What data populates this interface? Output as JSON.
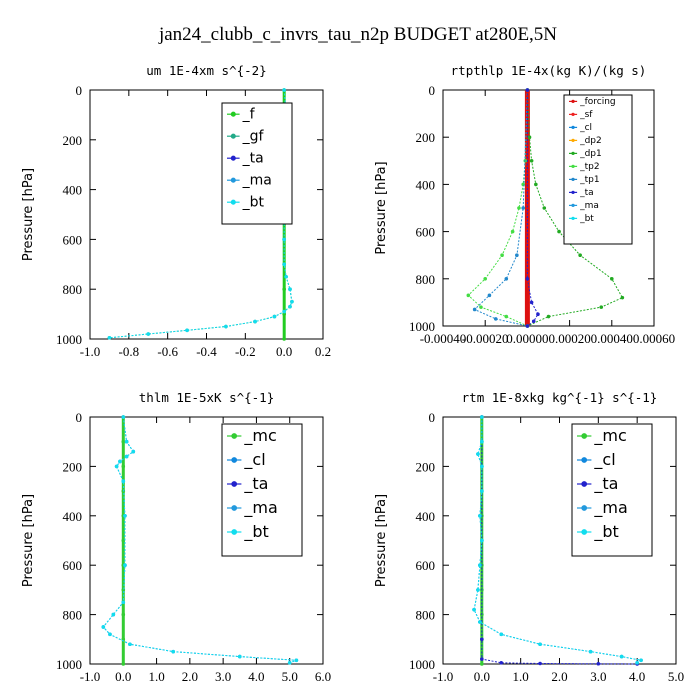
{
  "figure_title": "jan24_clubb_c_invrs_tau_n2p  BUDGET at280E,5N",
  "colors": {
    "f": "#22cc22",
    "gf": "#22aa88",
    "ta": "#2222cc",
    "ma": "#2299dd",
    "bt": "#11ddee",
    "cl": "#1188dd",
    "mc": "#33cc33",
    "forcing": "#dd1111",
    "sf": "#ee2222",
    "dp2": "#ffaa00",
    "dp1": "#22aa22",
    "tp2": "#44dd44",
    "tp1": "#2288cc"
  },
  "chart_data": [
    {
      "type": "line",
      "title": "um   1E-4xm s^{-2}",
      "ylabel": "Pressure [hPa]",
      "xlim": [
        -1.0,
        0.2
      ],
      "ylim": [
        1000,
        0
      ],
      "xticks": [
        "-1.0",
        "-0.8",
        "-0.6",
        "-0.4",
        "-0.2",
        "0.0",
        "0.2"
      ],
      "yticks": [
        "0",
        "200",
        "400",
        "600",
        "800",
        "1000"
      ],
      "legend": [
        "_f",
        "_gf",
        "_ta",
        "_ma",
        "_bt"
      ],
      "series": [
        {
          "name": "_f",
          "x": [
            0,
            0,
            0,
            0,
            0,
            0,
            0,
            0,
            0,
            0,
            0
          ],
          "y": [
            0,
            100,
            200,
            300,
            400,
            500,
            600,
            700,
            800,
            900,
            1000
          ]
        },
        {
          "name": "_gf",
          "x": [
            0.0,
            0.01,
            0.03,
            0.02,
            -0.01,
            0.0,
            0.0,
            0.0,
            0.0,
            0.0,
            0.01,
            0.03,
            0.04,
            0.03,
            0.0,
            -0.05,
            -0.15,
            -0.3,
            -0.5,
            -0.7,
            -0.9
          ],
          "y": [
            0,
            100,
            150,
            180,
            220,
            300,
            400,
            500,
            600,
            700,
            750,
            800,
            850,
            870,
            890,
            910,
            930,
            950,
            965,
            980,
            995
          ]
        },
        {
          "name": "_bt",
          "x": [
            0.0,
            0.01,
            0.03,
            0.02,
            -0.01,
            0.0,
            0.0,
            0.0,
            0.0,
            0.0,
            0.01,
            0.03,
            0.04,
            0.03,
            0.0,
            -0.05,
            -0.15,
            -0.3,
            -0.5,
            -0.7,
            -0.9
          ],
          "y": [
            0,
            100,
            150,
            180,
            220,
            300,
            400,
            500,
            600,
            700,
            750,
            800,
            850,
            870,
            890,
            910,
            930,
            950,
            965,
            980,
            995
          ]
        }
      ]
    },
    {
      "type": "line",
      "title": "rtpthlp   1E-4x(kg K)/(kg s)",
      "ylabel": "Pressure [hPa]",
      "xlim": [
        -0.0004,
        0.0006
      ],
      "ylim": [
        1000,
        0
      ],
      "xticks": [
        "-0.00040",
        "-0.00020",
        "0.00000",
        "0.00020",
        "0.00040",
        "0.00060"
      ],
      "yticks": [
        "0",
        "200",
        "400",
        "600",
        "800",
        "1000"
      ],
      "legend": [
        "_forcing",
        "_sf",
        "_cl",
        "_dp2",
        "_dp1",
        "_tp2",
        "_tp1",
        "_ta",
        "_ma",
        "_bt"
      ],
      "series": [
        {
          "name": "_forcing",
          "x": [
            0,
            0,
            0,
            0,
            0,
            0,
            0,
            0,
            0,
            0,
            0
          ],
          "y": [
            0,
            100,
            200,
            300,
            400,
            500,
            600,
            700,
            800,
            900,
            1000
          ]
        },
        {
          "name": "_dp1",
          "x": [
            0,
            1e-05,
            2e-05,
            4e-05,
            8e-05,
            0.00015,
            0.00025,
            0.0004,
            0.00045,
            0.00035,
            0.0001,
            0
          ],
          "y": [
            0,
            200,
            300,
            400,
            500,
            600,
            700,
            800,
            880,
            920,
            960,
            1000
          ]
        },
        {
          "name": "_tp2",
          "x": [
            0,
            -1e-05,
            -2e-05,
            -4e-05,
            -7e-05,
            -0.00012,
            -0.0002,
            -0.00028,
            -0.00022,
            -0.0001,
            0
          ],
          "y": [
            0,
            300,
            400,
            500,
            600,
            700,
            800,
            870,
            920,
            960,
            1000
          ]
        },
        {
          "name": "_tp1",
          "x": [
            0,
            -2e-05,
            -5e-05,
            -0.0001,
            -0.00018,
            -0.00025,
            -0.00015,
            0
          ],
          "y": [
            0,
            500,
            700,
            800,
            870,
            930,
            970,
            1000
          ]
        },
        {
          "name": "_ta",
          "x": [
            0,
            0,
            2e-05,
            5e-05,
            3e-05,
            0
          ],
          "y": [
            0,
            800,
            900,
            950,
            980,
            1000
          ]
        }
      ]
    },
    {
      "type": "line",
      "title": "thlm   1E-5xK s^{-1}",
      "ylabel": "Pressure [hPa]",
      "xlim": [
        -1.0,
        6.0
      ],
      "ylim": [
        1000,
        0
      ],
      "xticks": [
        "-1.0",
        "0.0",
        "1.0",
        "2.0",
        "3.0",
        "4.0",
        "5.0",
        "6.0"
      ],
      "yticks": [
        "0",
        "200",
        "400",
        "600",
        "800",
        "1000"
      ],
      "legend": [
        "_mc",
        "_cl",
        "_ta",
        "_ma",
        "_bt"
      ],
      "series": [
        {
          "name": "_mc",
          "x": [
            0,
            0,
            0,
            0,
            0,
            0,
            0,
            0,
            0,
            0,
            0
          ],
          "y": [
            0,
            100,
            200,
            300,
            400,
            500,
            600,
            700,
            800,
            900,
            1000
          ]
        },
        {
          "name": "_cl",
          "x": [
            0.0,
            0.1,
            0.3,
            0.1,
            -0.1,
            -0.2,
            0.0,
            0.05,
            0.05,
            0.0,
            -0.3,
            -0.6,
            -0.4,
            0.2,
            1.5,
            3.5,
            5.2,
            5.0
          ],
          "y": [
            0,
            100,
            140,
            160,
            180,
            200,
            260,
            400,
            600,
            750,
            800,
            850,
            880,
            920,
            950,
            970,
            985,
            995
          ]
        },
        {
          "name": "_bt",
          "x": [
            0.0,
            0.1,
            0.3,
            0.1,
            -0.1,
            -0.2,
            0.0,
            0.05,
            0.05,
            0.0,
            -0.3,
            -0.6,
            -0.4,
            0.2,
            1.5,
            3.5,
            5.2,
            5.0
          ],
          "y": [
            0,
            100,
            140,
            160,
            180,
            200,
            260,
            400,
            600,
            750,
            800,
            850,
            880,
            920,
            950,
            970,
            985,
            995
          ]
        }
      ]
    },
    {
      "type": "line",
      "title": "rtm   1E-8xkg kg^{-1} s^{-1}",
      "ylabel": "Pressure [hPa]",
      "xlim": [
        -1.0,
        5.0
      ],
      "ylim": [
        1000,
        0
      ],
      "xticks": [
        "-1.0",
        "0.0",
        "1.0",
        "2.0",
        "3.0",
        "4.0",
        "5.0"
      ],
      "yticks": [
        "0",
        "200",
        "400",
        "600",
        "800",
        "1000"
      ],
      "legend": [
        "_mc",
        "_cl",
        "_ta",
        "_ma",
        "_bt"
      ],
      "series": [
        {
          "name": "_mc",
          "x": [
            0,
            0,
            0,
            0,
            0,
            0,
            0,
            0,
            0,
            0,
            0
          ],
          "y": [
            0,
            100,
            200,
            300,
            400,
            500,
            600,
            700,
            800,
            900,
            1000
          ]
        },
        {
          "name": "_cl",
          "x": [
            0.0,
            0.0,
            -0.1,
            0.0,
            0.0,
            -0.05,
            0.0,
            -0.05,
            -0.1,
            -0.2,
            -0.05,
            0.5,
            1.5,
            2.8,
            3.6,
            4.1,
            4.0
          ],
          "y": [
            0,
            100,
            150,
            200,
            300,
            400,
            500,
            600,
            700,
            780,
            830,
            880,
            920,
            950,
            970,
            985,
            995
          ]
        },
        {
          "name": "_ta",
          "x": [
            0,
            0,
            0,
            0.5,
            1.5,
            3.0,
            4.0
          ],
          "y": [
            0,
            900,
            980,
            995,
            998,
            999,
            1000
          ]
        },
        {
          "name": "_bt",
          "x": [
            0.0,
            0.0,
            -0.1,
            0.0,
            0.0,
            -0.05,
            0.0,
            -0.05,
            -0.1,
            -0.2,
            -0.05,
            0.5,
            1.5,
            2.8,
            3.6,
            4.1,
            4.0
          ],
          "y": [
            0,
            100,
            150,
            200,
            300,
            400,
            500,
            600,
            700,
            780,
            830,
            880,
            920,
            950,
            970,
            985,
            995
          ]
        }
      ]
    }
  ]
}
